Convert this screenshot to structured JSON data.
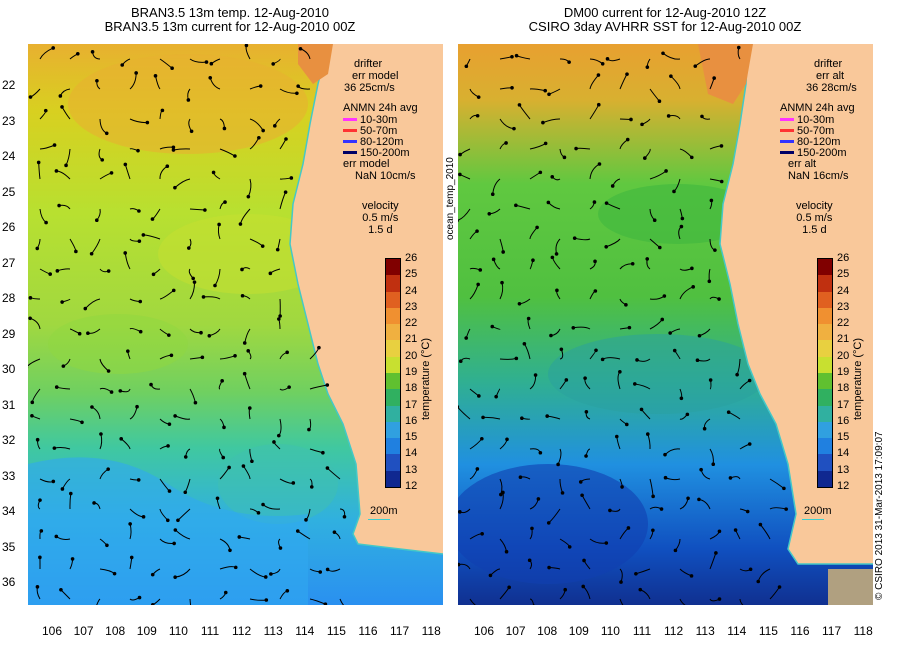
{
  "left_panel": {
    "title_line1": "BRAN3.5 13m temp. 12-Aug-2010",
    "title_line2": "BRAN3.5 13m current for 12-Aug-2010 00Z",
    "drifter_label": "drifter",
    "err_label": "err model",
    "err_value": "36 25cm/s",
    "anmn_label": "ANMN 24h avg",
    "anmn_err_label": "err model",
    "anmn_err_value": "NaN 10cm/s",
    "velocity_label": "velocity",
    "velocity_value": "0.5 m/s",
    "velocity_time": "1.5 d",
    "scale_label": "200m",
    "side_label": "ocean_temp_2010"
  },
  "right_panel": {
    "title_line1": "DM00 current for 12-Aug-2010 12Z",
    "title_line2": "CSIRO 3day AVHRR SST for 12-Aug-2010 00Z",
    "drifter_label": "drifter",
    "err_label": "err alt",
    "err_value": "36 28cm/s",
    "anmn_label": "ANMN 24h avg",
    "anmn_err_label": "err alt",
    "anmn_err_value": "NaN 16cm/s",
    "velocity_label": "velocity",
    "velocity_value": "0.5 m/s",
    "velocity_time": "1.5 d",
    "scale_label": "200m",
    "side_label": "© CSIRO 2013   31-Mar-2013 17:09:07"
  },
  "legend_depths": [
    {
      "label": "10-30m",
      "color": "#ff33ff"
    },
    {
      "label": "50-70m",
      "color": "#ff3333"
    },
    {
      "label": "80-120m",
      "color": "#3333ff"
    },
    {
      "label": "150-200m",
      "color": "#000066"
    }
  ],
  "colorbar": {
    "title": "temperature (°C)",
    "ticks": [
      "26",
      "25",
      "24",
      "23",
      "22",
      "21",
      "20",
      "19",
      "18",
      "17",
      "16",
      "15",
      "14",
      "13",
      "12"
    ]
  },
  "latitudes": [
    "22",
    "23",
    "24",
    "25",
    "26",
    "27",
    "28",
    "29",
    "30",
    "31",
    "32",
    "33",
    "34",
    "35",
    "36"
  ],
  "longitudes": [
    "106",
    "107",
    "108",
    "109",
    "110",
    "111",
    "112",
    "113",
    "114",
    "115",
    "116",
    "117",
    "118"
  ],
  "colors": {
    "land": "#f9c89a",
    "coast": "#44c8c8",
    "warm": "#e8a020",
    "mid": "#c8e020",
    "cool": "#40b0ff"
  }
}
